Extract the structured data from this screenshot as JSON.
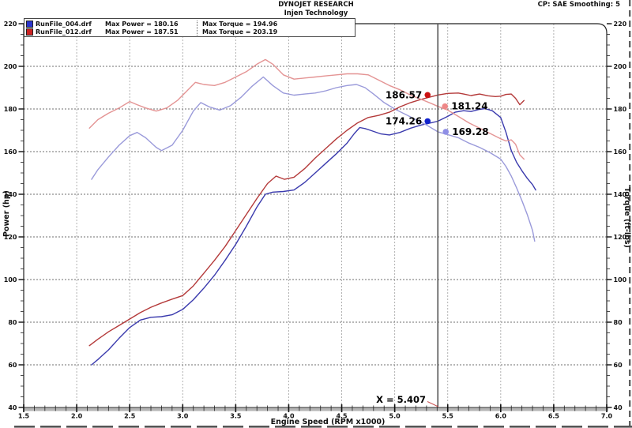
{
  "header": {
    "title": "DYNOJET RESEARCH",
    "subtitle": "Injen Technology",
    "smoothing": "CP: SAE Smoothing: 5"
  },
  "legend": {
    "rows": [
      {
        "file": "RunFile_004.drf",
        "power_label": "Max Power = 180.16",
        "torque_label": "Max Torque = 194.96",
        "color": "#2b35cc"
      },
      {
        "file": "RunFile_012.drf",
        "power_label": "Max Power = 187.51",
        "torque_label": "Max Torque = 203.19",
        "color": "#cc2222"
      }
    ]
  },
  "axes": {
    "x": {
      "label": "Engine Speed (RPM x1000)",
      "min": 1.5,
      "max": 7.0,
      "major": 0.5,
      "minor": 0.1
    },
    "y_left": {
      "label": "Power (hp)",
      "min": 40,
      "max": 220,
      "major": 20,
      "minor": 5
    },
    "y_right": {
      "label": "Torque (ft-lbs)",
      "min": 40,
      "max": 220,
      "major": 20,
      "minor": 5
    }
  },
  "cursor": {
    "rpm": 5.407,
    "label": "X = 5.407",
    "markers": [
      {
        "series": "RunFile_012.drf Power",
        "label": "186.57",
        "value": 186.57,
        "color": "#cc1111",
        "dx": -13,
        "side": "left"
      },
      {
        "series": "RunFile_012.drf Torque",
        "label": "181.24",
        "value": 181.24,
        "color": "#ee8888",
        "dx": 9,
        "side": "right"
      },
      {
        "series": "RunFile_004.drf Power",
        "label": "174.26",
        "value": 174.26,
        "color": "#1122cc",
        "dx": -13,
        "side": "left"
      },
      {
        "series": "RunFile_004.drf Torque",
        "label": "169.28",
        "value": 169.28,
        "color": "#8f8fe6",
        "dx": 10,
        "side": "right"
      }
    ]
  },
  "chart_data": {
    "type": "line",
    "title": "DYNOJET RESEARCH - Injen Technology",
    "xlabel": "Engine Speed (RPM x1000)",
    "ylabel_left": "Power (hp)",
    "ylabel_right": "Torque (ft-lbs)",
    "xlim": [
      1.5,
      7.0
    ],
    "ylim": [
      40,
      220
    ],
    "grid": true,
    "series": [
      {
        "name": "RunFile_004.drf Power",
        "axis": "left",
        "color": "#3a3aad",
        "max": 180.16,
        "points": [
          [
            2.14,
            60
          ],
          [
            2.2,
            62.5
          ],
          [
            2.3,
            67
          ],
          [
            2.4,
            72.5
          ],
          [
            2.5,
            77.5
          ],
          [
            2.6,
            81
          ],
          [
            2.7,
            82.3
          ],
          [
            2.8,
            82.6
          ],
          [
            2.9,
            83.5
          ],
          [
            3.0,
            86
          ],
          [
            3.1,
            90.5
          ],
          [
            3.2,
            96
          ],
          [
            3.3,
            102
          ],
          [
            3.4,
            109
          ],
          [
            3.5,
            116.5
          ],
          [
            3.6,
            125
          ],
          [
            3.7,
            134
          ],
          [
            3.78,
            140
          ],
          [
            3.85,
            141
          ],
          [
            3.95,
            141.3
          ],
          [
            4.05,
            142
          ],
          [
            4.15,
            145.5
          ],
          [
            4.25,
            150
          ],
          [
            4.35,
            154.5
          ],
          [
            4.45,
            159
          ],
          [
            4.55,
            164
          ],
          [
            4.62,
            168.5
          ],
          [
            4.67,
            171.3
          ],
          [
            4.72,
            170.8
          ],
          [
            4.77,
            170
          ],
          [
            4.87,
            168.3
          ],
          [
            4.95,
            167.8
          ],
          [
            5.05,
            169
          ],
          [
            5.15,
            171
          ],
          [
            5.25,
            172.5
          ],
          [
            5.35,
            173.6
          ],
          [
            5.407,
            174.26
          ],
          [
            5.5,
            176.5
          ],
          [
            5.57,
            178.5
          ],
          [
            5.65,
            179.2
          ],
          [
            5.72,
            178.8
          ],
          [
            5.8,
            179.8
          ],
          [
            5.85,
            180.2
          ],
          [
            5.92,
            179.2
          ],
          [
            6.0,
            176
          ],
          [
            6.05,
            169
          ],
          [
            6.1,
            160.5
          ],
          [
            6.15,
            155
          ],
          [
            6.2,
            151
          ],
          [
            6.25,
            147.5
          ],
          [
            6.3,
            144.5
          ],
          [
            6.33,
            142
          ]
        ]
      },
      {
        "name": "RunFile_004.drf Torque",
        "axis": "right",
        "color": "#9a9ada",
        "max": 194.96,
        "points": [
          [
            2.14,
            147
          ],
          [
            2.2,
            151.5
          ],
          [
            2.3,
            157.5
          ],
          [
            2.4,
            163
          ],
          [
            2.5,
            167.5
          ],
          [
            2.57,
            169
          ],
          [
            2.65,
            166.5
          ],
          [
            2.75,
            162
          ],
          [
            2.8,
            160.5
          ],
          [
            2.9,
            163
          ],
          [
            3.0,
            170
          ],
          [
            3.1,
            179
          ],
          [
            3.17,
            183
          ],
          [
            3.25,
            181
          ],
          [
            3.35,
            179.5
          ],
          [
            3.45,
            181.5
          ],
          [
            3.55,
            185.5
          ],
          [
            3.65,
            190.5
          ],
          [
            3.76,
            195
          ],
          [
            3.85,
            191
          ],
          [
            3.95,
            187.5
          ],
          [
            4.05,
            186.5
          ],
          [
            4.15,
            187
          ],
          [
            4.25,
            187.5
          ],
          [
            4.35,
            188.5
          ],
          [
            4.45,
            190
          ],
          [
            4.55,
            191
          ],
          [
            4.64,
            191.5
          ],
          [
            4.72,
            190
          ],
          [
            4.8,
            187
          ],
          [
            4.9,
            183
          ],
          [
            5.0,
            180
          ],
          [
            5.1,
            177.5
          ],
          [
            5.2,
            175
          ],
          [
            5.3,
            172.5
          ],
          [
            5.407,
            169.28
          ],
          [
            5.5,
            168
          ],
          [
            5.6,
            166.5
          ],
          [
            5.7,
            164
          ],
          [
            5.8,
            162
          ],
          [
            5.9,
            159.5
          ],
          [
            6.0,
            156.5
          ],
          [
            6.05,
            153
          ],
          [
            6.1,
            148.5
          ],
          [
            6.15,
            143
          ],
          [
            6.2,
            137
          ],
          [
            6.25,
            130.5
          ],
          [
            6.3,
            123
          ],
          [
            6.32,
            118
          ]
        ]
      },
      {
        "name": "RunFile_012.drf Power",
        "axis": "left",
        "color": "#b43a3a",
        "max": 187.51,
        "points": [
          [
            2.12,
            69
          ],
          [
            2.2,
            72
          ],
          [
            2.3,
            75.5
          ],
          [
            2.4,
            78.5
          ],
          [
            2.5,
            81.5
          ],
          [
            2.6,
            84.5
          ],
          [
            2.7,
            87
          ],
          [
            2.8,
            89
          ],
          [
            2.9,
            90.8
          ],
          [
            3.0,
            92.5
          ],
          [
            3.1,
            97
          ],
          [
            3.2,
            103
          ],
          [
            3.3,
            109
          ],
          [
            3.4,
            115.5
          ],
          [
            3.5,
            123
          ],
          [
            3.6,
            130.5
          ],
          [
            3.7,
            138
          ],
          [
            3.8,
            145
          ],
          [
            3.88,
            148.5
          ],
          [
            3.96,
            147
          ],
          [
            4.05,
            148
          ],
          [
            4.15,
            152
          ],
          [
            4.25,
            157
          ],
          [
            4.35,
            161.5
          ],
          [
            4.45,
            166
          ],
          [
            4.55,
            170
          ],
          [
            4.65,
            173.5
          ],
          [
            4.75,
            176
          ],
          [
            4.85,
            177
          ],
          [
            4.95,
            178.5
          ],
          [
            5.05,
            181
          ],
          [
            5.15,
            183
          ],
          [
            5.25,
            184.5
          ],
          [
            5.35,
            185.8
          ],
          [
            5.407,
            186.57
          ],
          [
            5.5,
            187.3
          ],
          [
            5.6,
            187.5
          ],
          [
            5.65,
            187
          ],
          [
            5.72,
            186.3
          ],
          [
            5.8,
            187
          ],
          [
            5.88,
            186.2
          ],
          [
            5.95,
            185.8
          ],
          [
            6.0,
            186
          ],
          [
            6.05,
            186.8
          ],
          [
            6.1,
            187
          ],
          [
            6.14,
            185
          ],
          [
            6.18,
            182
          ],
          [
            6.22,
            184
          ]
        ]
      },
      {
        "name": "RunFile_012.drf Torque",
        "axis": "right",
        "color": "#e49494",
        "max": 203.19,
        "points": [
          [
            2.12,
            171
          ],
          [
            2.2,
            175
          ],
          [
            2.3,
            178
          ],
          [
            2.4,
            180.5
          ],
          [
            2.5,
            183.5
          ],
          [
            2.57,
            182
          ],
          [
            2.65,
            180.5
          ],
          [
            2.75,
            179
          ],
          [
            2.85,
            180.5
          ],
          [
            2.95,
            184
          ],
          [
            3.05,
            189
          ],
          [
            3.12,
            192.5
          ],
          [
            3.2,
            191.5
          ],
          [
            3.3,
            191
          ],
          [
            3.4,
            192.5
          ],
          [
            3.5,
            195
          ],
          [
            3.6,
            197.5
          ],
          [
            3.7,
            201
          ],
          [
            3.78,
            203.2
          ],
          [
            3.85,
            201
          ],
          [
            3.95,
            196
          ],
          [
            4.05,
            194
          ],
          [
            4.15,
            194.5
          ],
          [
            4.25,
            195
          ],
          [
            4.35,
            195.5
          ],
          [
            4.45,
            196
          ],
          [
            4.55,
            196.5
          ],
          [
            4.65,
            196.5
          ],
          [
            4.75,
            196
          ],
          [
            4.85,
            193.5
          ],
          [
            4.95,
            191
          ],
          [
            5.05,
            189
          ],
          [
            5.15,
            186.5
          ],
          [
            5.25,
            184.5
          ],
          [
            5.35,
            182.5
          ],
          [
            5.407,
            181.24
          ],
          [
            5.5,
            179.5
          ],
          [
            5.6,
            176.5
          ],
          [
            5.7,
            173.5
          ],
          [
            5.8,
            171
          ],
          [
            5.9,
            168.5
          ],
          [
            6.0,
            166
          ],
          [
            6.05,
            165
          ],
          [
            6.1,
            165.5
          ],
          [
            6.14,
            163.5
          ],
          [
            6.18,
            158.5
          ],
          [
            6.22,
            156.5
          ]
        ]
      }
    ]
  }
}
